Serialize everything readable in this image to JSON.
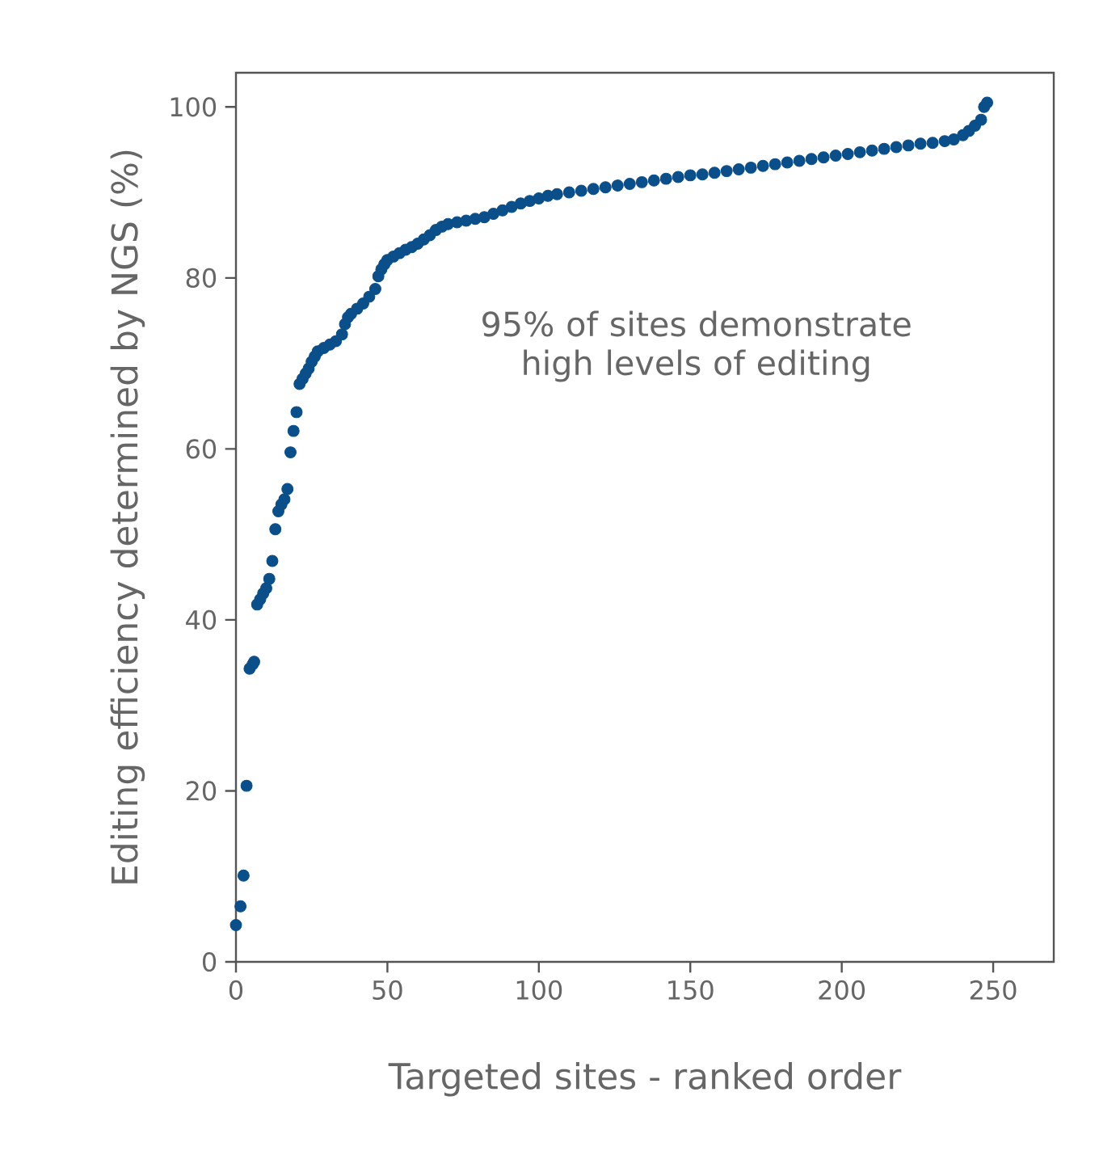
{
  "chart_data": {
    "type": "scatter",
    "xlabel": "Targeted sites - ranked order",
    "ylabel": "Editing efficiency determined by NGS (%)",
    "annotations": [
      "95% of sites demonstrate high levels of editing"
    ],
    "xlim": [
      0,
      270
    ],
    "ylim": [
      0,
      104
    ],
    "xticks": [
      0,
      50,
      100,
      150,
      200,
      250
    ],
    "yticks": [
      0,
      20,
      40,
      60,
      80,
      100
    ],
    "grid": false,
    "series": [
      {
        "color": "#0b4f8a",
        "x": [
          0,
          1.5,
          2.5,
          3.5,
          4.5,
          5.5,
          6,
          7,
          8,
          9,
          10,
          11,
          12,
          13,
          14,
          15,
          16,
          17,
          18,
          19,
          20,
          21,
          22,
          23,
          24,
          25,
          26,
          27,
          29,
          31,
          33,
          35,
          36,
          37,
          38,
          40,
          42,
          44,
          46,
          47,
          48,
          49,
          50,
          52,
          54,
          56,
          58,
          60,
          62,
          64,
          66,
          68,
          70,
          73,
          76,
          79,
          82,
          85,
          88,
          91,
          94,
          97,
          100,
          103,
          106,
          110,
          114,
          118,
          122,
          126,
          130,
          134,
          138,
          142,
          146,
          150,
          154,
          158,
          162,
          166,
          170,
          174,
          178,
          182,
          186,
          190,
          194,
          198,
          202,
          206,
          210,
          214,
          218,
          222,
          226,
          230,
          234,
          237,
          240,
          242,
          244,
          246,
          247,
          248
        ],
        "values": [
          4.3,
          6.5,
          10.1,
          20.6,
          34.3,
          34.8,
          35.1,
          41.8,
          42.4,
          43.1,
          43.7,
          44.8,
          46.9,
          50.6,
          52.7,
          53.5,
          54.1,
          55.3,
          59.6,
          62.1,
          64.3,
          67.6,
          68.2,
          68.8,
          69.4,
          70.2,
          70.8,
          71.4,
          71.8,
          72.2,
          72.6,
          73.4,
          74.6,
          75.4,
          75.8,
          76.4,
          77.0,
          77.8,
          78.7,
          80.2,
          81.0,
          81.6,
          82.1,
          82.5,
          82.9,
          83.3,
          83.6,
          84.0,
          84.5,
          85.0,
          85.6,
          86.0,
          86.3,
          86.5,
          86.7,
          86.9,
          87.1,
          87.5,
          87.9,
          88.3,
          88.7,
          89.0,
          89.3,
          89.6,
          89.8,
          90.0,
          90.2,
          90.4,
          90.6,
          90.8,
          91.0,
          91.2,
          91.4,
          91.6,
          91.8,
          92.0,
          92.1,
          92.3,
          92.5,
          92.7,
          92.9,
          93.1,
          93.3,
          93.5,
          93.7,
          93.9,
          94.1,
          94.3,
          94.5,
          94.7,
          94.9,
          95.1,
          95.3,
          95.5,
          95.7,
          95.8,
          96.0,
          96.2,
          96.7,
          97.2,
          97.8,
          98.5,
          100.0,
          100.5
        ]
      }
    ]
  }
}
